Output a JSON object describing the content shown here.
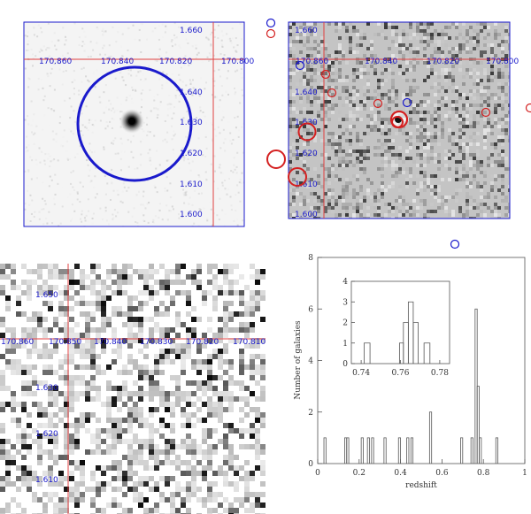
{
  "panel_a": {
    "ra_labels": [
      "170.860",
      "170.840",
      "170.820",
      "170.800"
    ],
    "dec_labels": [
      "1.660",
      "1.640",
      "1.630",
      "1.620",
      "1.610",
      "1.600"
    ]
  },
  "panel_b": {
    "ra_labels": [
      "170.860",
      "170.840",
      "170.820",
      "170.800"
    ],
    "dec_labels": [
      "1.660",
      "1.640",
      "1.630",
      "1.620",
      "1.610",
      "1.600"
    ]
  },
  "panel_c": {
    "ra_labels": [
      "170.860",
      "170.850",
      "170.840",
      "170.830",
      "170.820",
      "170.810"
    ],
    "dec_labels": [
      "1.650",
      "1.630",
      "1.620",
      "1.610"
    ]
  },
  "colors": {
    "blue": "#1a1acc",
    "red": "#d42020",
    "cross": "#e04040"
  },
  "chart_data": {
    "type": "histogram",
    "xlabel": "redshift",
    "ylabel": "Number of galaxies",
    "xlim": [
      0,
      1
    ],
    "ylim": [
      0,
      8
    ],
    "x_ticks": [
      "0",
      "0.2",
      "0.4",
      "0.6",
      "0.8",
      "1"
    ],
    "y_ticks": [
      "0",
      "2",
      "4",
      "6",
      "8"
    ],
    "bins": [
      {
        "x0": 0.03,
        "x1": 0.04,
        "count": 1
      },
      {
        "x0": 0.13,
        "x1": 0.14,
        "count": 1
      },
      {
        "x0": 0.14,
        "x1": 0.15,
        "count": 1
      },
      {
        "x0": 0.21,
        "x1": 0.22,
        "count": 1
      },
      {
        "x0": 0.24,
        "x1": 0.25,
        "count": 1
      },
      {
        "x0": 0.26,
        "x1": 0.27,
        "count": 1
      },
      {
        "x0": 0.32,
        "x1": 0.33,
        "count": 1
      },
      {
        "x0": 0.39,
        "x1": 0.4,
        "count": 1
      },
      {
        "x0": 0.43,
        "x1": 0.44,
        "count": 1
      },
      {
        "x0": 0.45,
        "x1": 0.46,
        "count": 1
      },
      {
        "x0": 0.54,
        "x1": 0.55,
        "count": 2
      },
      {
        "x0": 0.69,
        "x1": 0.7,
        "count": 1
      },
      {
        "x0": 0.74,
        "x1": 0.75,
        "count": 1
      },
      {
        "x0": 0.76,
        "x1": 0.77,
        "count": 6
      },
      {
        "x0": 0.77,
        "x1": 0.78,
        "count": 3
      },
      {
        "x0": 0.78,
        "x1": 0.79,
        "count": 1
      },
      {
        "x0": 0.86,
        "x1": 0.87,
        "count": 1
      }
    ],
    "inset": {
      "xlim": [
        0.735,
        0.785
      ],
      "ylim": [
        0,
        4
      ],
      "x_ticks": [
        "0.74",
        "0.76",
        "0.78"
      ],
      "y_ticks": [
        "0",
        "1",
        "2",
        "3",
        "4"
      ],
      "bins": [
        {
          "x0": 0.7415,
          "x1": 0.7445,
          "count": 1
        },
        {
          "x0": 0.7595,
          "x1": 0.7615,
          "count": 1
        },
        {
          "x0": 0.7615,
          "x1": 0.764,
          "count": 2
        },
        {
          "x0": 0.764,
          "x1": 0.7665,
          "count": 3
        },
        {
          "x0": 0.7665,
          "x1": 0.769,
          "count": 2
        },
        {
          "x0": 0.769,
          "x1": 0.772,
          "count": 0
        },
        {
          "x0": 0.772,
          "x1": 0.775,
          "count": 1
        }
      ]
    }
  }
}
